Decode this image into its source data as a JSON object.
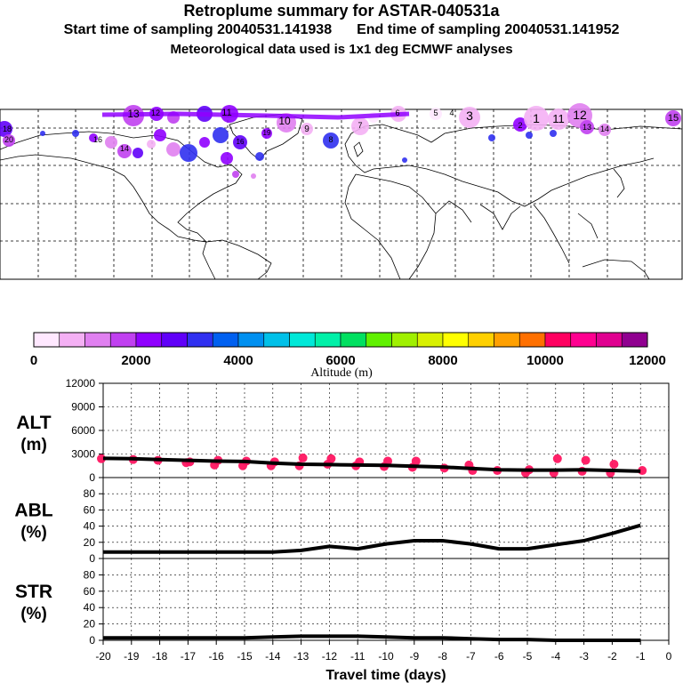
{
  "header": {
    "title": "Retroplume summary for ASTAR-040531a",
    "start_label": "Start time of sampling 20040531.141938",
    "end_label": "End time of sampling 20040531.141952",
    "met_label": "Meteorological data used is 1x1 deg ECMWF analyses"
  },
  "colorbar": {
    "title": "Altitude (m)",
    "tick_labels": [
      "0",
      "2000",
      "4000",
      "6000",
      "8000",
      "10000",
      "12000"
    ],
    "colors": [
      "#ffe8ff",
      "#f4b0f4",
      "#e080f0",
      "#c040f0",
      "#9000ff",
      "#6000f8",
      "#3030f0",
      "#0060f0",
      "#0090f0",
      "#00c0e8",
      "#00e8d8",
      "#00f0a8",
      "#00e060",
      "#60f000",
      "#a0f000",
      "#d8f000",
      "#ffff00",
      "#ffd000",
      "#ffa000",
      "#ff7000",
      "#ff0060",
      "#ff0090",
      "#e00090",
      "#900090"
    ]
  },
  "map": {
    "labels": [
      "18",
      "20",
      "16",
      "14",
      "13",
      "12",
      "11",
      "10",
      "9",
      "8",
      "7",
      "6",
      "5",
      "4",
      "3",
      "2",
      "1",
      "11",
      "12",
      "13",
      "14",
      "15",
      "16",
      "19"
    ]
  },
  "chart_data": [
    {
      "type": "line",
      "panel": "ALT",
      "ylabel_line1": "ALT",
      "ylabel_line2": "(m)",
      "ylim": [
        0,
        12000
      ],
      "yticks": [
        0,
        3000,
        6000,
        9000,
        12000
      ],
      "ytick_labels": [
        "0",
        "3000",
        "6000",
        "9000",
        "12000"
      ],
      "xlim": [
        -20,
        0
      ],
      "line": {
        "x": [
          -20,
          -19,
          -18,
          -17,
          -16,
          -15,
          -14,
          -13,
          -12,
          -11,
          -10,
          -9,
          -8,
          -7,
          -6,
          -5,
          -4,
          -3,
          -2,
          -1
        ],
        "y": [
          2450,
          2400,
          2300,
          2200,
          2100,
          2050,
          1850,
          1700,
          1650,
          1600,
          1550,
          1450,
          1350,
          1150,
          1000,
          950,
          950,
          1000,
          900,
          800
        ]
      },
      "points": {
        "x": [
          -20,
          -19,
          -18,
          -17,
          -17,
          -16,
          -16,
          -15,
          -15,
          -14,
          -14,
          -13,
          -13,
          -12,
          -12,
          -11,
          -11,
          -10,
          -10,
          -9,
          -9,
          -8,
          -7,
          -7,
          -6,
          -5,
          -5,
          -4,
          -4,
          -3,
          -3,
          -2,
          -2,
          -1
        ],
        "y": [
          2400,
          2300,
          2200,
          2000,
          1900,
          2200,
          1600,
          2100,
          1500,
          2000,
          1500,
          2500,
          1500,
          2400,
          1700,
          2000,
          1500,
          2100,
          1400,
          2100,
          1300,
          1200,
          1600,
          900,
          900,
          1000,
          600,
          2400,
          600,
          2200,
          800,
          1700,
          600,
          900
        ]
      }
    },
    {
      "type": "line",
      "panel": "ABL",
      "ylabel_line1": "ABL",
      "ylabel_line2": "(%)",
      "ylim": [
        0,
        100
      ],
      "yticks": [
        0,
        20,
        40,
        60,
        80
      ],
      "ytick_labels": [
        "0",
        "20",
        "40",
        "60",
        "80"
      ],
      "xlim": [
        -20,
        0
      ],
      "line": {
        "x": [
          -20,
          -19,
          -18,
          -17,
          -16,
          -15,
          -14,
          -13,
          -12,
          -11,
          -10,
          -9,
          -8,
          -7,
          -6,
          -5,
          -4,
          -3,
          -2,
          -1
        ],
        "y": [
          8,
          8,
          8,
          8,
          8,
          8,
          8,
          10,
          15,
          12,
          18,
          22,
          22,
          18,
          12,
          12,
          17,
          22,
          31,
          41
        ]
      }
    },
    {
      "type": "line",
      "panel": "STR",
      "ylabel_line1": "STR",
      "ylabel_line2": "(%)",
      "ylim": [
        0,
        100
      ],
      "yticks": [
        0,
        20,
        40,
        60,
        80
      ],
      "ytick_labels": [
        "0",
        "20",
        "40",
        "60",
        "80"
      ],
      "xlim": [
        -20,
        0
      ],
      "xticks": [
        -20,
        -19,
        -18,
        -17,
        -16,
        -15,
        -14,
        -13,
        -12,
        -11,
        -10,
        -9,
        -8,
        -7,
        -6,
        -5,
        -4,
        -3,
        -2,
        -1,
        0
      ],
      "xtick_labels": [
        "-20",
        "-19",
        "-18",
        "-17",
        "-16",
        "-15",
        "-14",
        "-13",
        "-12",
        "-11",
        "-10",
        "-9",
        "-8",
        "-7",
        "-6",
        "-5",
        "-4",
        "-3",
        "-2",
        "-1",
        "0"
      ],
      "xlabel": "Travel time (days)",
      "line": {
        "x": [
          -20,
          -19,
          -18,
          -17,
          -16,
          -15,
          -14,
          -13,
          -12,
          -11,
          -10,
          -9,
          -8,
          -7,
          -6,
          -5,
          -4,
          -3,
          -2,
          -1
        ],
        "y": [
          3,
          3,
          3,
          3,
          3,
          3,
          4,
          5,
          5,
          5,
          4,
          3,
          3,
          2,
          1,
          1,
          0,
          0,
          0,
          0
        ]
      }
    }
  ]
}
